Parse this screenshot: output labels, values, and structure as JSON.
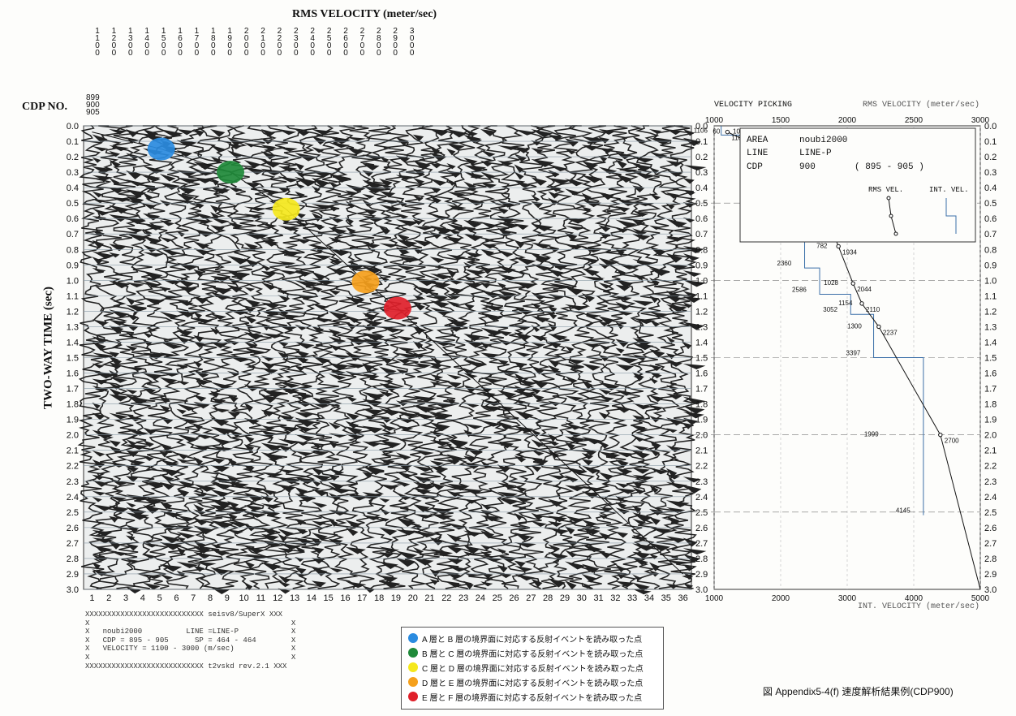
{
  "chart_data": [
    {
      "type": "seismic-velocity-spectrum",
      "title": "RMS VELOCITY (meter/sec)",
      "rms_velocity_ticks": [
        "1100",
        "1200",
        "1300",
        "1400",
        "1500",
        "1600",
        "1700",
        "1800",
        "1900",
        "2000",
        "2100",
        "2200",
        "2300",
        "2400",
        "2500",
        "2600",
        "2700",
        "2800",
        "2900",
        "3000"
      ],
      "cdp_label": "CDP NO.",
      "cdp_range": [
        "899",
        "900",
        "905"
      ],
      "ylabel": "TWO-WAY TIME (sec)",
      "time_ticks": [
        "0.0",
        "0.1",
        "0.2",
        "0.3",
        "0.4",
        "0.5",
        "0.6",
        "0.7",
        "0.8",
        "0.9",
        "1.0",
        "1.1",
        "1.2",
        "1.3",
        "1.4",
        "1.5",
        "1.6",
        "1.7",
        "1.8",
        "1.9",
        "2.0",
        "2.1",
        "2.2",
        "2.3",
        "2.4",
        "2.5",
        "2.6",
        "2.7",
        "2.8",
        "2.9",
        "3.0"
      ],
      "ylim": [
        0,
        3.0
      ],
      "trace_numbers": [
        "1",
        "2",
        "3",
        "4",
        "5",
        "6",
        "7",
        "8",
        "9",
        "10",
        "11",
        "12",
        "13",
        "14",
        "15",
        "16",
        "17",
        "18",
        "19",
        "20",
        "21",
        "22",
        "23",
        "24",
        "25",
        "26",
        "27",
        "28",
        "29",
        "30",
        "31",
        "32",
        "33",
        "34",
        "35",
        "36"
      ],
      "picks": [
        {
          "layer": "A",
          "time": 0.15,
          "trace": 5.1,
          "color": "#2a8be0"
        },
        {
          "layer": "B",
          "time": 0.3,
          "trace": 9.2,
          "color": "#1f8a3a"
        },
        {
          "layer": "C",
          "time": 0.54,
          "trace": 12.5,
          "color": "#f5e81c"
        },
        {
          "layer": "D",
          "time": 1.01,
          "trace": 17.2,
          "color": "#f5a01c"
        },
        {
          "layer": "E",
          "time": 1.18,
          "trace": 19.1,
          "color": "#e0202a"
        }
      ]
    },
    {
      "type": "line",
      "title": "VELOCITY PICKING",
      "rms_axis_title": "RMS VELOCITY (meter/sec)",
      "int_axis_title": "INT. VELOCITY (meter/sec)",
      "rms_ticks": [
        "1000",
        "1500",
        "2000",
        "2500",
        "3000"
      ],
      "int_ticks": [
        "1000",
        "2000",
        "3000",
        "4000",
        "5000"
      ],
      "xlim_rms": [
        1000,
        3000
      ],
      "xlim_int": [
        1000,
        5000
      ],
      "ylim": [
        0,
        3.0
      ],
      "series": [
        {
          "name": "RMS VEL.",
          "x": [
            1100,
            1250,
            1420,
            1572,
            1703,
            1782,
            1879,
            1934,
            2044,
            2110,
            2237,
            2700
          ],
          "y": [
            0.04,
            0.1,
            0.16,
            0.25,
            0.34,
            0.49,
            0.66,
            0.78,
            1.02,
            1.15,
            1.3,
            2.0
          ]
        },
        {
          "name": "INT. VEL.",
          "x": [
            1106,
            1872,
            1956,
            2135,
            2205,
            2360,
            2586,
            3052,
            3397,
            4145
          ],
          "y": [
            0.06,
            0.25,
            0.42,
            0.57,
            0.72,
            0.92,
            1.09,
            1.22,
            1.5,
            2.52
          ]
        }
      ],
      "point_labels": [
        "60",
        "108",
        "1106",
        "130",
        "1447",
        "229",
        "1872",
        "344",
        "1703",
        "1956",
        "490",
        "1782",
        "2135",
        "659",
        "1879",
        "2205",
        "782",
        "1934",
        "2360",
        "1028",
        "2044",
        "2586",
        "1154",
        "2110",
        "305",
        "1300",
        "2237",
        "3397",
        "1999",
        "2700",
        "4145"
      ],
      "box": {
        "area_label": "AREA",
        "area": "noubi2000",
        "line_label": "LINE",
        "line": "LINE-P",
        "cdp_label": "CDP",
        "cdp": "900",
        "cdp_range": "( 895 - 905 )",
        "rms_legend": "RMS VEL.",
        "int_legend": "INT. VEL."
      }
    }
  ],
  "info_box": "XXXXXXXXXXXXXXXXXXXXXXXXXXX seisv8/SuperX XXX\nX                                              X\nX   noubi2000          LINE =LINE-P            X\nX   CDP = 895 - 905      SP = 464 - 464        X\nX   VELOCITY = 1100 - 3000 (m/sec)             X\nX                                              X\nXXXXXXXXXXXXXXXXXXXXXXXXXXX t2vskd rev.2.1 XXX",
  "legend": [
    {
      "color": "#2a8be0",
      "text": "A 層と B 層の境界面に対応する反射イベントを読み取った点"
    },
    {
      "color": "#1f8a3a",
      "text": "B 層と C 層の境界面に対応する反射イベントを読み取った点"
    },
    {
      "color": "#f5e81c",
      "text": "C 層と D 層の境界面に対応する反射イベントを読み取った点"
    },
    {
      "color": "#f5a01c",
      "text": "D 層と E 層の境界面に対応する反射イベントを読み取った点"
    },
    {
      "color": "#e0202a",
      "text": "E 層と F 層の境界面に対応する反射イベントを読み取った点"
    }
  ],
  "caption": "図 Appendix5-4(f)  速度解析結果例(CDP900)"
}
